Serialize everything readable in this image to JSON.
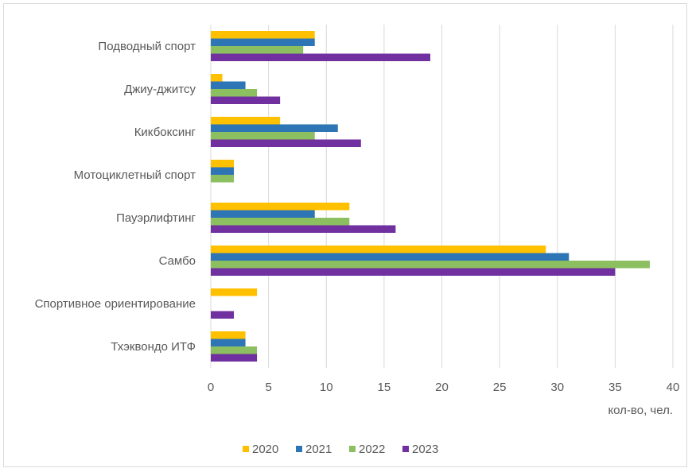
{
  "chart_data": {
    "type": "bar",
    "orientation": "horizontal",
    "categories": [
      "Подводный спорт",
      "Джиу-джитсу",
      "Кикбоксинг",
      "Мотоциклетный спорт",
      "Пауэрлифтинг",
      "Самбо",
      "Спортивное ориентирование",
      "Тхэквондо ИТФ"
    ],
    "series": [
      {
        "name": "2020",
        "color": "#FFC000",
        "values": [
          9,
          1,
          6,
          2,
          12,
          29,
          4,
          3
        ]
      },
      {
        "name": "2021",
        "color": "#2E75B6",
        "values": [
          9,
          3,
          11,
          2,
          9,
          31,
          0,
          3
        ]
      },
      {
        "name": "2022",
        "color": "#8CBF5F",
        "values": [
          8,
          4,
          9,
          2,
          12,
          38,
          0,
          4
        ]
      },
      {
        "name": "2023",
        "color": "#7030A0",
        "values": [
          19,
          6,
          13,
          0,
          16,
          35,
          2,
          4
        ]
      }
    ],
    "xlabel": "кол-во, чел.",
    "xlim": [
      0,
      40
    ],
    "xticks": [
      0,
      5,
      10,
      15,
      20,
      25,
      30,
      35,
      40
    ],
    "grid": "vertical",
    "legend": "bottom"
  }
}
